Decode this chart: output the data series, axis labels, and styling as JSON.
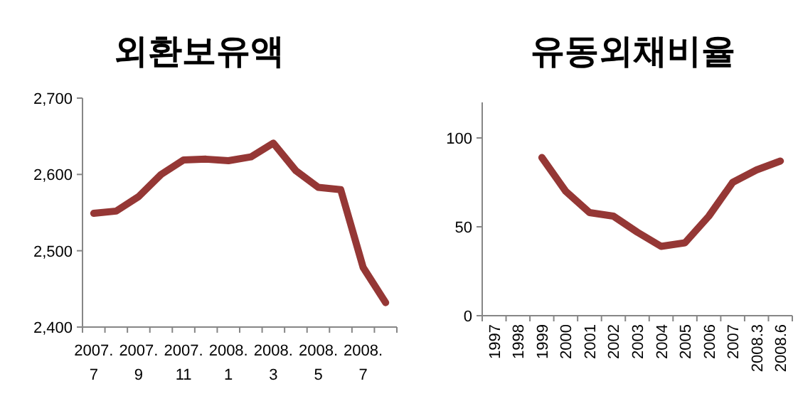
{
  "chart_data": [
    {
      "type": "line",
      "title": "외환보유액",
      "categories": [
        "2007.\n7",
        null,
        "2007.\n9",
        null,
        "2007.\n11",
        null,
        "2008.\n1",
        null,
        "2008.\n3",
        null,
        "2008.\n5",
        null,
        "2008.\n7",
        null
      ],
      "series": [
        {
          "color": "#953735",
          "values": [
            2549,
            2552,
            2571,
            2600,
            2619,
            2620,
            2618,
            2623,
            2641,
            2605,
            2583,
            2580,
            2478,
            2432
          ]
        }
      ],
      "ylim": [
        2400,
        2700
      ],
      "yticks": [
        {
          "value": 2400,
          "label": "2,400"
        },
        {
          "value": 2500,
          "label": "2,500"
        },
        {
          "value": 2600,
          "label": "2,600"
        },
        {
          "value": 2700,
          "label": "2,700"
        }
      ]
    },
    {
      "type": "line",
      "title": "유동외채비율",
      "categories": [
        "1997",
        "1998",
        "1999",
        "2000",
        "2001",
        "2002",
        "2003",
        "2004",
        "2005",
        "2006",
        "2007",
        "2008.3",
        "2008.6"
      ],
      "series": [
        {
          "color": "#953735",
          "values": [
            null,
            null,
            89,
            70,
            58,
            56,
            47,
            39,
            41,
            56,
            75,
            82,
            87
          ]
        }
      ],
      "ylim": [
        0,
        120
      ],
      "yticks": [
        0,
        50,
        100
      ]
    }
  ]
}
